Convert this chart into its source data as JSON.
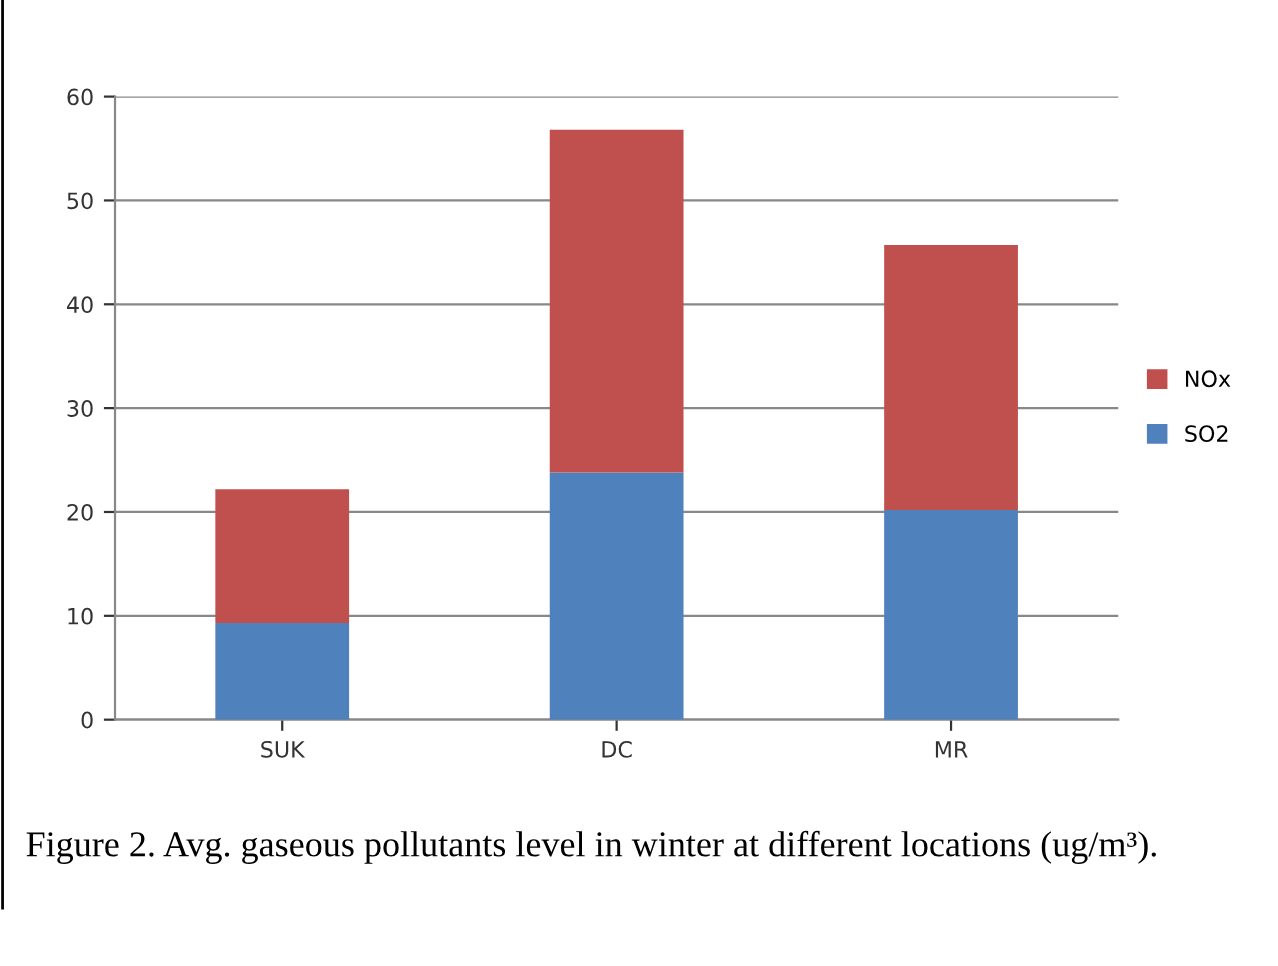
{
  "chart_data": {
    "type": "bar",
    "stacked": true,
    "categories": [
      "SUK",
      "DC",
      "MR"
    ],
    "series": [
      {
        "name": "SO2",
        "color": "#4f81bd",
        "values": [
          9.3,
          23.8,
          20.2
        ]
      },
      {
        "name": "NOx",
        "color": "#c0504d",
        "values": [
          12.9,
          33.0,
          25.5
        ]
      }
    ],
    "ylim": [
      0,
      60
    ],
    "yticks": [
      0,
      10,
      20,
      30,
      40,
      50,
      60
    ],
    "grid": "y",
    "legend": "right",
    "annotations": [
      "Figure 2. Avg. gaseous pollutants level in winter at different locations (ug/m³)."
    ]
  }
}
